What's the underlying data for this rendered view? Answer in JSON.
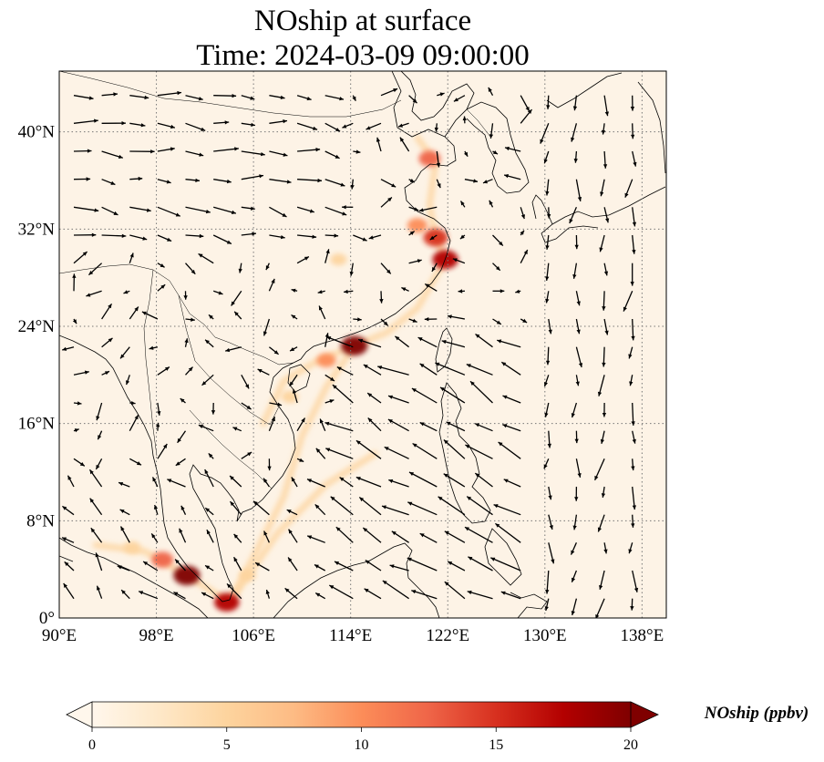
{
  "title": {
    "line1": "NOship at surface",
    "line2": "Time: 2024-03-09 09:00:00"
  },
  "axes": {
    "lon_labels": [
      "90°E",
      "98°E",
      "106°E",
      "114°E",
      "122°E",
      "130°E",
      "138°E"
    ],
    "lon_values": [
      90,
      98,
      106,
      114,
      122,
      130,
      138
    ],
    "lat_labels": [
      "0°",
      "8°N",
      "16°N",
      "24°N",
      "32°N",
      "40°N"
    ],
    "lat_values": [
      0,
      8,
      16,
      24,
      32,
      40
    ],
    "lon_range": [
      90,
      140
    ],
    "lat_range": [
      0,
      45
    ]
  },
  "colorbar": {
    "label": "NOship (ppbv)",
    "ticks": [
      "0",
      "5",
      "10",
      "15",
      "20"
    ],
    "tick_values": [
      0,
      5,
      10,
      15,
      20
    ],
    "range": [
      0,
      20
    ],
    "extend": "both",
    "colormap": "OrRd",
    "stops": [
      "#fff7ec",
      "#fee8c8",
      "#fdd49e",
      "#fdbb84",
      "#fc8d59",
      "#ef6548",
      "#d7301f",
      "#b30000",
      "#7f0000"
    ]
  },
  "colors": {
    "background": "#fdf3e6",
    "coastline": "#000000",
    "gridline": "#777777",
    "wind_arrow": "#000000"
  },
  "chart_data": {
    "type": "heatmap",
    "variable": "NOship",
    "level": "surface",
    "units": "ppbv",
    "high_concentration_regions": [
      {
        "lon": 121.8,
        "lat": 29.5,
        "value": 18
      },
      {
        "lon": 121.0,
        "lat": 31.3,
        "value": 16
      },
      {
        "lon": 119.5,
        "lat": 32.3,
        "value": 10
      },
      {
        "lon": 120.5,
        "lat": 37.8,
        "value": 12
      },
      {
        "lon": 114.3,
        "lat": 22.4,
        "value": 19
      },
      {
        "lon": 112.0,
        "lat": 21.2,
        "value": 9
      },
      {
        "lon": 109.0,
        "lat": 18.2,
        "value": 6
      },
      {
        "lon": 113.0,
        "lat": 29.5,
        "value": 5
      },
      {
        "lon": 100.5,
        "lat": 3.5,
        "value": 19
      },
      {
        "lon": 98.5,
        "lat": 4.8,
        "value": 12
      },
      {
        "lon": 103.8,
        "lat": 1.3,
        "value": 17
      },
      {
        "lon": 96.0,
        "lat": 5.8,
        "value": 6
      },
      {
        "lon": 105.5,
        "lat": 3.5,
        "value": 5
      }
    ],
    "shipping_lanes": [
      [
        [
          104.0,
          1.3
        ],
        [
          106.0,
          5.0
        ],
        [
          108.5,
          10.0
        ],
        [
          110.0,
          15.0
        ],
        [
          112.0,
          19.0
        ],
        [
          114.3,
          22.4
        ]
      ],
      [
        [
          114.3,
          22.4
        ],
        [
          117.0,
          23.5
        ],
        [
          119.5,
          25.5
        ],
        [
          121.8,
          29.5
        ],
        [
          121.0,
          31.3
        ],
        [
          120.5,
          34.0
        ],
        [
          121.0,
          37.5
        ],
        [
          119.5,
          39.5
        ]
      ],
      [
        [
          104.0,
          1.3
        ],
        [
          100.5,
          3.5
        ],
        [
          97.0,
          5.5
        ],
        [
          93.0,
          6.0
        ]
      ],
      [
        [
          114.3,
          22.4
        ],
        [
          111.0,
          21.0
        ],
        [
          108.5,
          19.5
        ],
        [
          106.8,
          16.0
        ]
      ],
      [
        [
          104.0,
          1.3
        ],
        [
          108.0,
          7.0
        ],
        [
          112.0,
          11.0
        ],
        [
          116.0,
          13.5
        ]
      ]
    ]
  }
}
